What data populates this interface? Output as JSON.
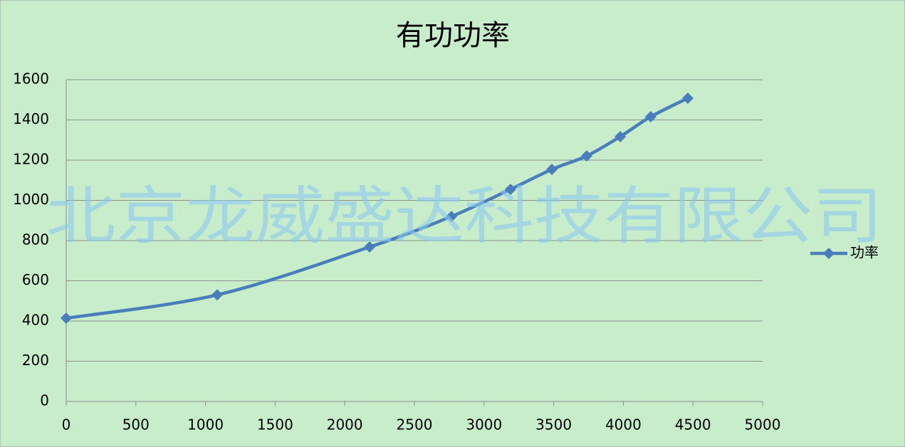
{
  "chart_data": {
    "type": "line",
    "title": "有功功率",
    "x": [
      0,
      1084,
      2178,
      2766,
      3190,
      3487,
      3737,
      3978,
      4197,
      4463
    ],
    "series": [
      {
        "name": "功率",
        "color": "#4a7ebb",
        "values": [
          414,
          530,
          768,
          920,
          1055,
          1154,
          1221,
          1317,
          1416,
          1508
        ]
      }
    ],
    "xlim": [
      0,
      5000
    ],
    "xticks": [
      0,
      500,
      1000,
      1500,
      2000,
      2500,
      3000,
      3500,
      4000,
      4500,
      5000
    ],
    "ylim": [
      0,
      1600
    ],
    "yticks": [
      0,
      200,
      400,
      600,
      800,
      1000,
      1200,
      1400,
      1600
    ],
    "grid": true,
    "legend": "right",
    "smooth": true,
    "watermark": "北京龙威盛达科技有限公司"
  }
}
